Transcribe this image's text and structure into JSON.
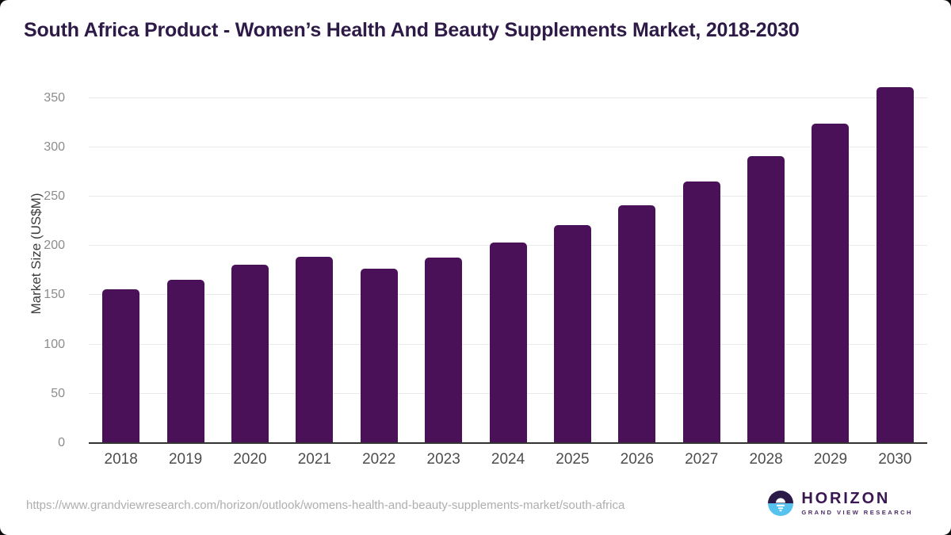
{
  "title": "South Africa Product - Women’s Health And Beauty Supplements Market, 2018-2030",
  "chart_data": {
    "type": "bar",
    "title": "South Africa Product - Women’s Health And Beauty Supplements Market, 2018-2030",
    "categories": [
      "2018",
      "2019",
      "2020",
      "2021",
      "2022",
      "2023",
      "2024",
      "2025",
      "2026",
      "2027",
      "2028",
      "2029",
      "2030"
    ],
    "values": [
      156,
      166,
      181,
      189,
      177,
      188,
      203,
      221,
      241,
      265,
      291,
      324,
      361
    ],
    "xlabel": "",
    "ylabel": "Market Size (US$M)",
    "ylim": [
      0,
      350
    ],
    "yticks": [
      0,
      50,
      100,
      150,
      200,
      250,
      300,
      350
    ],
    "grid": true,
    "legend": "none",
    "bar_color": "#4a1158"
  },
  "colors": {
    "title": "#2e1a47",
    "bar": "#4a1158",
    "gridline": "#e9e9e9",
    "axis_line": "#333333",
    "tick_label": "#8c8c8c",
    "x_label": "#4d4d4d",
    "url_text": "#aeaeae",
    "logo_dark": "#2b1947",
    "logo_blue": "#56c3ef"
  },
  "footer": {
    "source_url": "https://www.grandviewresearch.com/horizon/outlook/womens-health-and-beauty-supplements-market/south-africa",
    "logo_title": "HORIZON",
    "logo_subtitle": "GRAND VIEW RESEARCH"
  }
}
